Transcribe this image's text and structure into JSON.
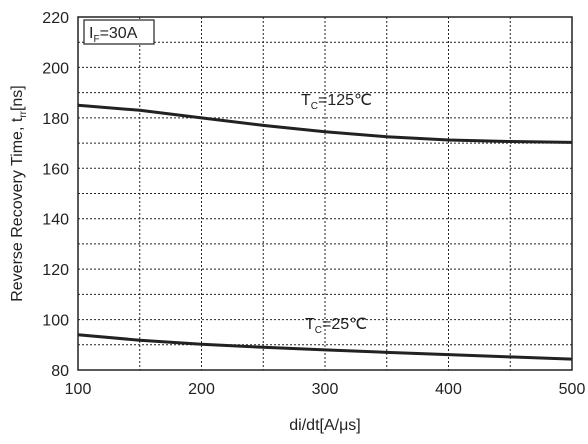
{
  "chart_data": {
    "type": "line",
    "xlabel": "di/dt[A/μs]",
    "ylabel": {
      "prefix": "Reverse Recovery Time, t",
      "subscript": "rr",
      "suffix": "[ns]"
    },
    "xlim": [
      100,
      500
    ],
    "ylim": [
      80,
      220
    ],
    "xticks": [
      100,
      200,
      300,
      400,
      500
    ],
    "yticks": [
      80,
      100,
      120,
      140,
      160,
      180,
      200,
      220
    ],
    "x_minor_grid": [
      150,
      250,
      350,
      450
    ],
    "grid": true,
    "annotation": {
      "symbol": "I",
      "subscript": "F",
      "text": "=30A"
    },
    "series": [
      {
        "name": "T_C=125°C",
        "label_symbol": "T",
        "label_subscript": "C",
        "label_text": "=125℃",
        "label_at_x": 300,
        "x": [
          100,
          150,
          200,
          250,
          300,
          350,
          400,
          450,
          500
        ],
        "y": [
          185,
          183,
          180,
          177,
          174.5,
          172.5,
          171.2,
          170.6,
          170.3
        ]
      },
      {
        "name": "T_C=25°C",
        "label_symbol": "T",
        "label_subscript": "C",
        "label_text": "=25℃",
        "label_at_x": 300,
        "x": [
          100,
          150,
          200,
          250,
          300,
          350,
          400,
          450,
          500
        ],
        "y": [
          94,
          91.8,
          90.2,
          89,
          88,
          87,
          86.1,
          85.2,
          84.3
        ]
      }
    ]
  }
}
